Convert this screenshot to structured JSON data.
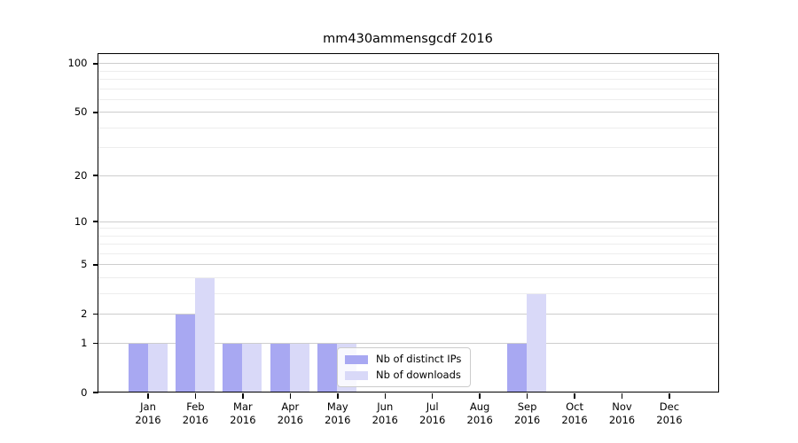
{
  "chart_data": {
    "type": "bar",
    "title": "mm430ammensgcdf 2016",
    "categories": [
      "Jan",
      "Feb",
      "Mar",
      "Apr",
      "May",
      "Jun",
      "Jul",
      "Aug",
      "Sep",
      "Oct",
      "Nov",
      "Dec"
    ],
    "category_year": "2016",
    "series": [
      {
        "name": "Nb of distinct IPs",
        "color": "#a8a8f2",
        "values": [
          1,
          2,
          1,
          1,
          1,
          0,
          0,
          0,
          1,
          0,
          0,
          0
        ]
      },
      {
        "name": "Nb of downloads",
        "color": "#d9d9f8",
        "values": [
          1,
          4,
          1,
          1,
          1,
          0,
          0,
          0,
          3,
          0,
          0,
          0
        ]
      }
    ],
    "xlabel": "",
    "ylabel": "",
    "y_axis": {
      "scale": "log1p",
      "ticks": [
        0,
        1,
        2,
        5,
        10,
        20,
        50,
        100
      ],
      "minor_gridlines": [
        3,
        4,
        6,
        7,
        8,
        9,
        30,
        40,
        60,
        70,
        80,
        90
      ],
      "range": [
        0,
        116
      ]
    },
    "grid": {
      "orientation": "horizontal",
      "major_color": "#cdcdcd",
      "minor_color": "#ededed"
    },
    "legend": {
      "position": "inside-bottom-center"
    }
  }
}
